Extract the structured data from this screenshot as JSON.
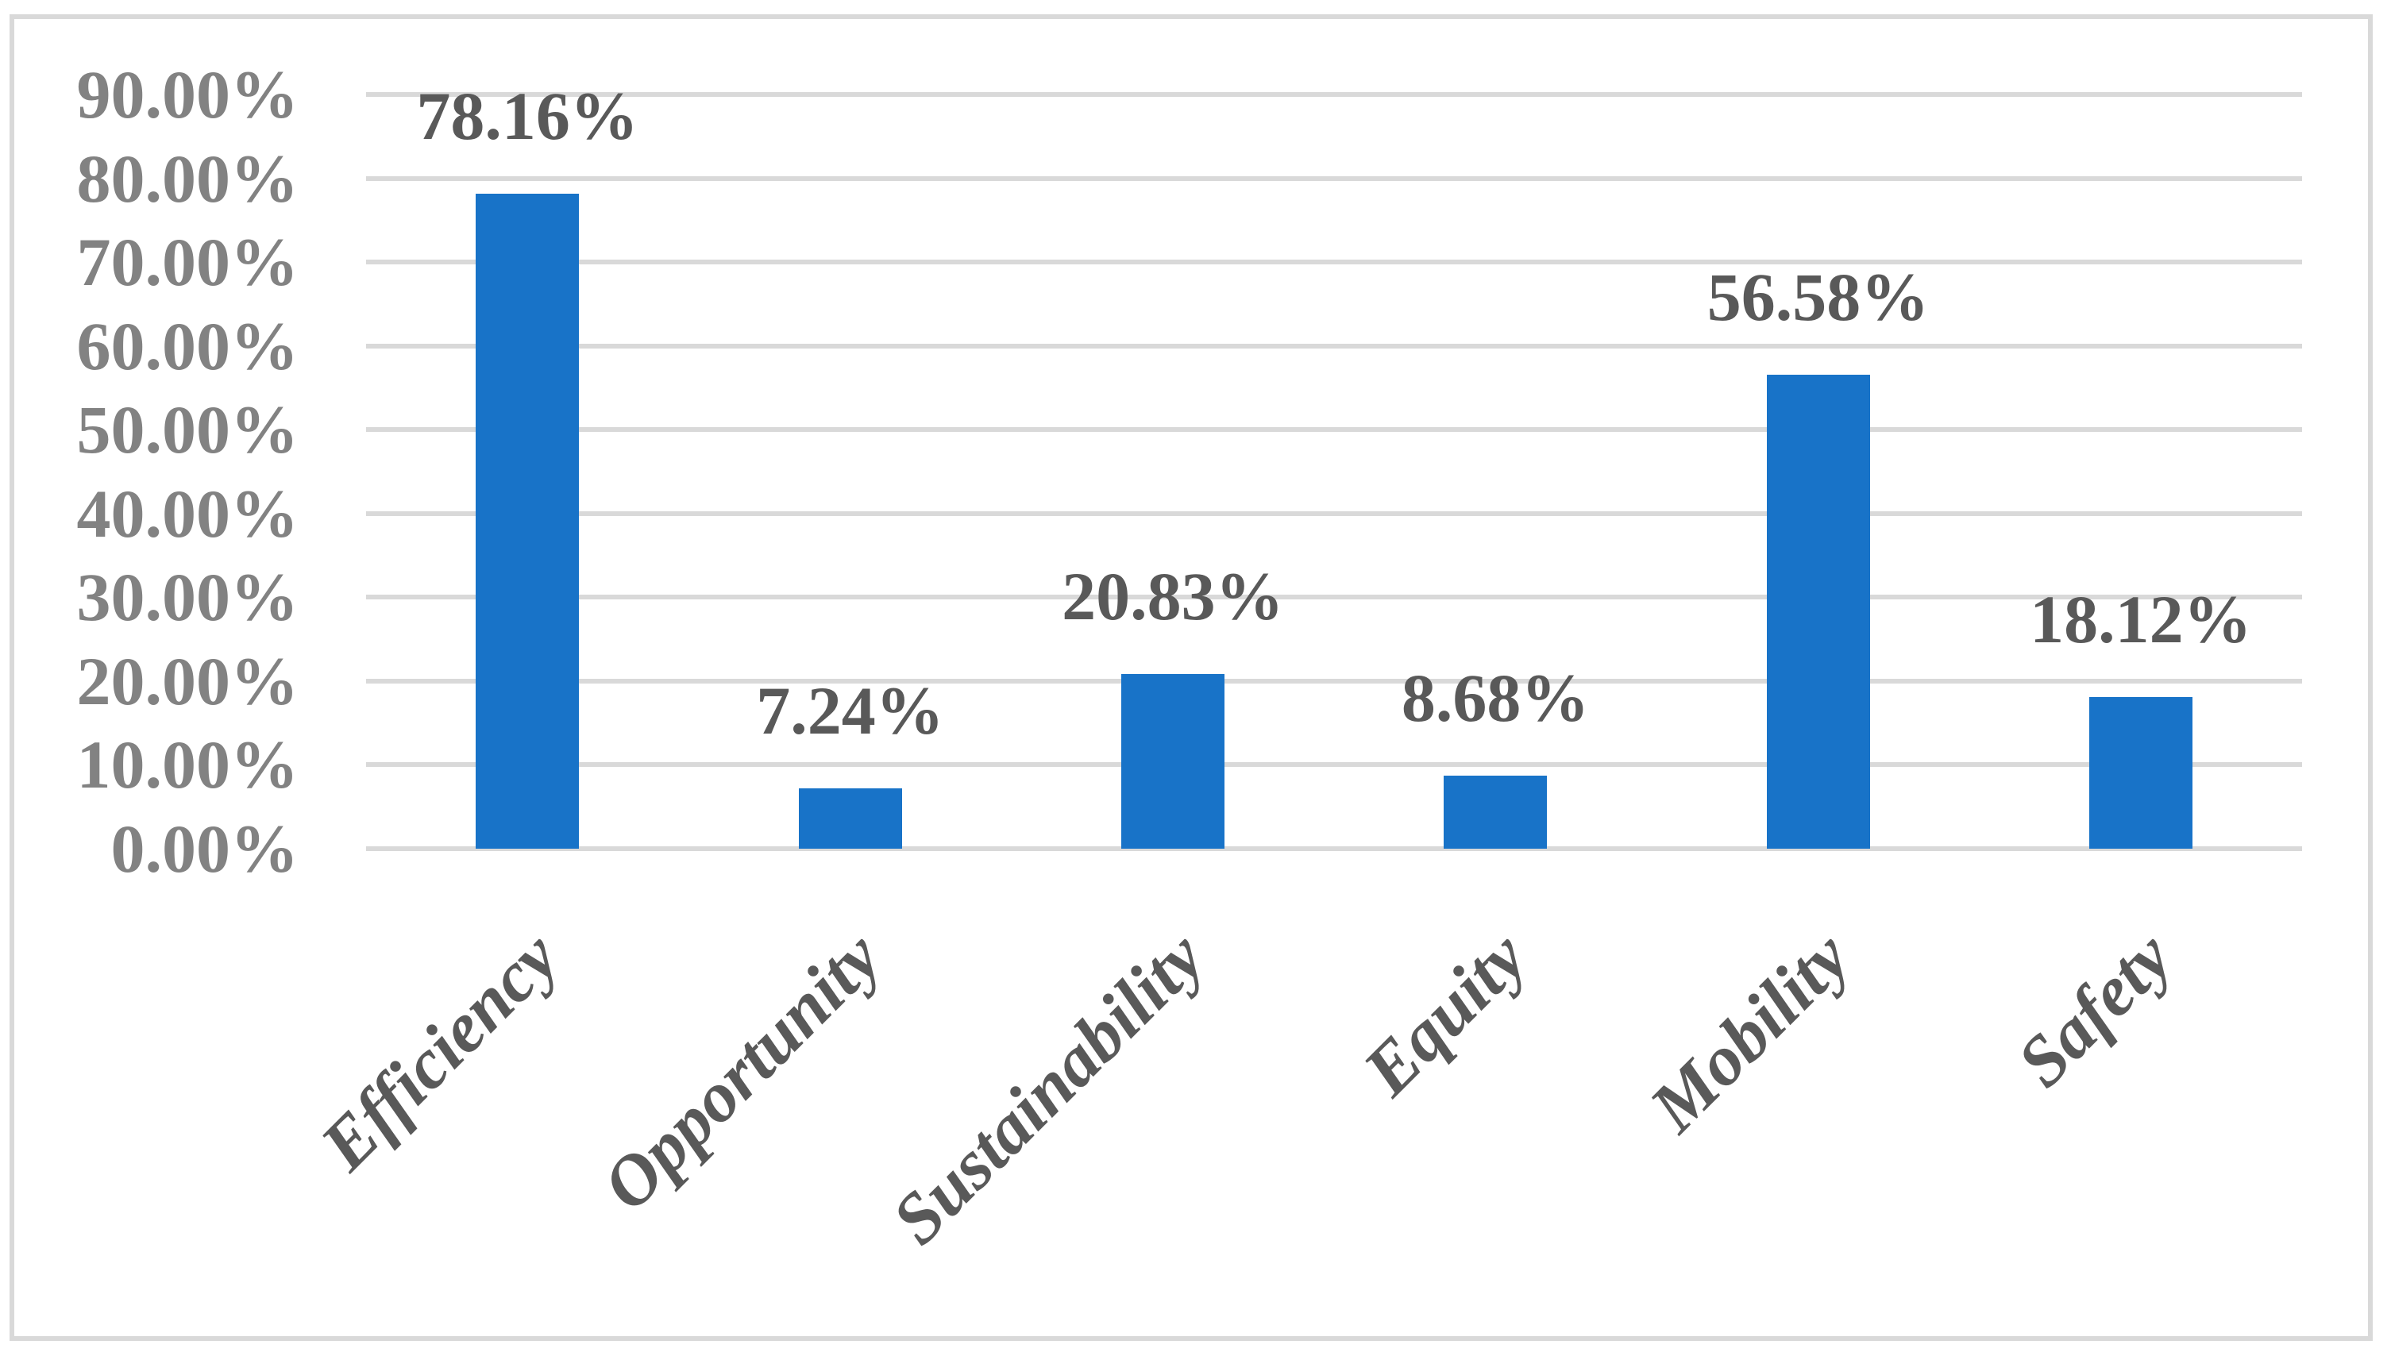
{
  "chart_data": {
    "type": "bar",
    "title": "",
    "categories": [
      "Efficiency",
      "Opportunity",
      "Sustainability",
      "Equity",
      "Mobility",
      "Safety"
    ],
    "values": [
      78.16,
      7.24,
      20.83,
      8.68,
      56.58,
      18.12
    ],
    "data_labels": [
      "78.16%",
      "7.24%",
      "20.83%",
      "8.68%",
      "56.58%",
      "18.12%"
    ],
    "y_tick_labels": [
      "0.00%",
      "10.00%",
      "20.00%",
      "30.00%",
      "40.00%",
      "50.00%",
      "60.00%",
      "70.00%",
      "80.00%",
      "90.00%"
    ],
    "ylim": [
      0,
      90
    ],
    "y_tick_step": 10,
    "grid": true,
    "legend_position": "none",
    "colors": {
      "bar": "#1873C8",
      "gridline": "#D9D9D9",
      "frame_border": "#D9D9D9",
      "axis_label": "#828282",
      "data_label": "#595959",
      "category_label": "#595959",
      "background": "#FFFFFF"
    }
  }
}
